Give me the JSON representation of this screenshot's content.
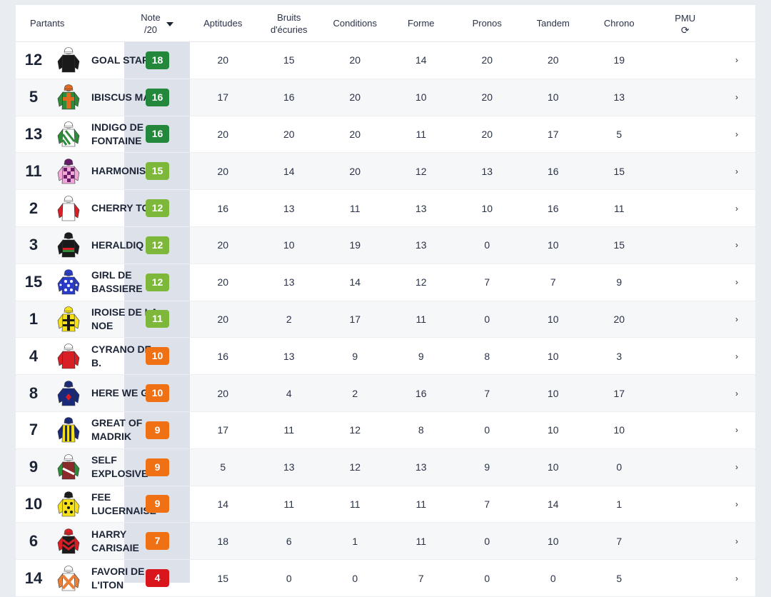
{
  "header": {
    "partants": "Partants",
    "note": "Note",
    "note_sub": "/20",
    "columns": [
      "Aptitudes",
      "Bruits",
      "Conditions",
      "Forme",
      "Pronos",
      "Tandem",
      "Chrono"
    ],
    "bruits_line2": "d'écuries",
    "pmu": "PMU"
  },
  "colors": {
    "green_dark": "#23883c",
    "green_light": "#7db83a",
    "orange": "#f07014",
    "red": "#d9161b"
  },
  "rows": [
    {
      "num": "12",
      "name": "GOAL STAR",
      "note": "18",
      "level": "green_dark",
      "scores": [
        "20",
        "15",
        "20",
        "14",
        "20",
        "20",
        "19"
      ],
      "silk": {
        "body": "#1a1a1a",
        "sleeve": "#1a1a1a",
        "cap": "#ffffff",
        "pattern": "plain"
      }
    },
    {
      "num": "5",
      "name": "IBISCUS MAN",
      "note": "16",
      "level": "green_dark",
      "scores": [
        "17",
        "16",
        "20",
        "10",
        "20",
        "10",
        "13"
      ],
      "silk": {
        "body": "#2e8b3a",
        "sleeve": "#2e8b3a",
        "cap": "#e06a20",
        "pattern": "cross"
      }
    },
    {
      "num": "13",
      "name": "INDIGO DE FONTAINE",
      "note": "16",
      "level": "green_dark",
      "scores": [
        "20",
        "20",
        "20",
        "11",
        "20",
        "17",
        "5"
      ],
      "silk": {
        "body": "#ffffff",
        "sleeve": "#2e8b3a",
        "cap": "#ffffff",
        "pattern": "stripes-green"
      }
    },
    {
      "num": "11",
      "name": "HARMONIS",
      "note": "15",
      "level": "green_light",
      "scores": [
        "20",
        "14",
        "20",
        "12",
        "13",
        "16",
        "15"
      ],
      "silk": {
        "body": "#f0a8d8",
        "sleeve": "#f0a8d8",
        "cap": "#6a1b6a",
        "pattern": "checks"
      }
    },
    {
      "num": "2",
      "name": "CHERRY TOP",
      "note": "12",
      "level": "green_light",
      "scores": [
        "16",
        "13",
        "11",
        "13",
        "10",
        "16",
        "11"
      ],
      "silk": {
        "body": "#ffffff",
        "sleeve": "#d81f26",
        "cap": "#ffffff",
        "pattern": "plain"
      }
    },
    {
      "num": "3",
      "name": "HERALDIQ",
      "note": "12",
      "level": "green_light",
      "scores": [
        "20",
        "10",
        "19",
        "13",
        "0",
        "10",
        "15"
      ],
      "silk": {
        "body": "#1a1a1a",
        "sleeve": "#1a1a1a",
        "cap": "#1a1a1a",
        "pattern": "band-red"
      }
    },
    {
      "num": "15",
      "name": "GIRL DE BASSIERE",
      "note": "12",
      "level": "green_light",
      "scores": [
        "20",
        "13",
        "14",
        "12",
        "7",
        "7",
        "9"
      ],
      "silk": {
        "body": "#2a3cc8",
        "sleeve": "#2a3cc8",
        "cap": "#2a3cc8",
        "pattern": "dots"
      }
    },
    {
      "num": "1",
      "name": "IROISE DE LA NOE",
      "note": "11",
      "level": "green_light",
      "scores": [
        "20",
        "2",
        "17",
        "11",
        "0",
        "10",
        "20"
      ],
      "silk": {
        "body": "#f5e11a",
        "sleeve": "#f5e11a",
        "cap": "#f5e11a",
        "pattern": "cross-black"
      }
    },
    {
      "num": "4",
      "name": "CYRANO DE B.",
      "note": "10",
      "level": "orange",
      "scores": [
        "16",
        "13",
        "9",
        "9",
        "8",
        "10",
        "3"
      ],
      "silk": {
        "body": "#d81f26",
        "sleeve": "#d81f26",
        "cap": "#ffffff",
        "pattern": "plain"
      }
    },
    {
      "num": "8",
      "name": "HERE WE GO",
      "note": "10",
      "level": "orange",
      "scores": [
        "20",
        "4",
        "2",
        "16",
        "7",
        "10",
        "17"
      ],
      "silk": {
        "body": "#1a2a7a",
        "sleeve": "#1a2a7a",
        "cap": "#1a2a7a",
        "pattern": "diamond-red"
      }
    },
    {
      "num": "7",
      "name": "GREAT OF MADRIK",
      "note": "9",
      "level": "orange",
      "scores": [
        "17",
        "11",
        "12",
        "8",
        "0",
        "10",
        "10"
      ],
      "silk": {
        "body": "#f5e11a",
        "sleeve": "#1a2a7a",
        "cap": "#1a2a7a",
        "pattern": "stripes-blue"
      }
    },
    {
      "num": "9",
      "name": "SELF EXPLOSIVE",
      "note": "9",
      "level": "orange",
      "scores": [
        "5",
        "13",
        "12",
        "13",
        "9",
        "10",
        "0"
      ],
      "silk": {
        "body": "#8a2a2a",
        "sleeve": "#2e8b3a",
        "cap": "#ffffff",
        "pattern": "band-white"
      }
    },
    {
      "num": "10",
      "name": "FEE LUCERNAISE",
      "note": "9",
      "level": "orange",
      "scores": [
        "14",
        "11",
        "11",
        "11",
        "7",
        "14",
        "1"
      ],
      "silk": {
        "body": "#f5e11a",
        "sleeve": "#f5e11a",
        "cap": "#1a1a1a",
        "pattern": "dots-black"
      }
    },
    {
      "num": "6",
      "name": "HARRY CARISAIE",
      "note": "7",
      "level": "orange",
      "scores": [
        "18",
        "6",
        "1",
        "11",
        "0",
        "10",
        "7"
      ],
      "silk": {
        "body": "#1a1a1a",
        "sleeve": "#d81f26",
        "cap": "#d81f26",
        "pattern": "chevron-red"
      }
    },
    {
      "num": "14",
      "name": "FAVORI DE L'ITON",
      "note": "4",
      "level": "red",
      "scores": [
        "15",
        "0",
        "0",
        "7",
        "0",
        "0",
        "5"
      ],
      "silk": {
        "body": "#ffffff",
        "sleeve": "#e8803a",
        "cap": "#ffffff",
        "pattern": "cross-orange"
      }
    }
  ]
}
